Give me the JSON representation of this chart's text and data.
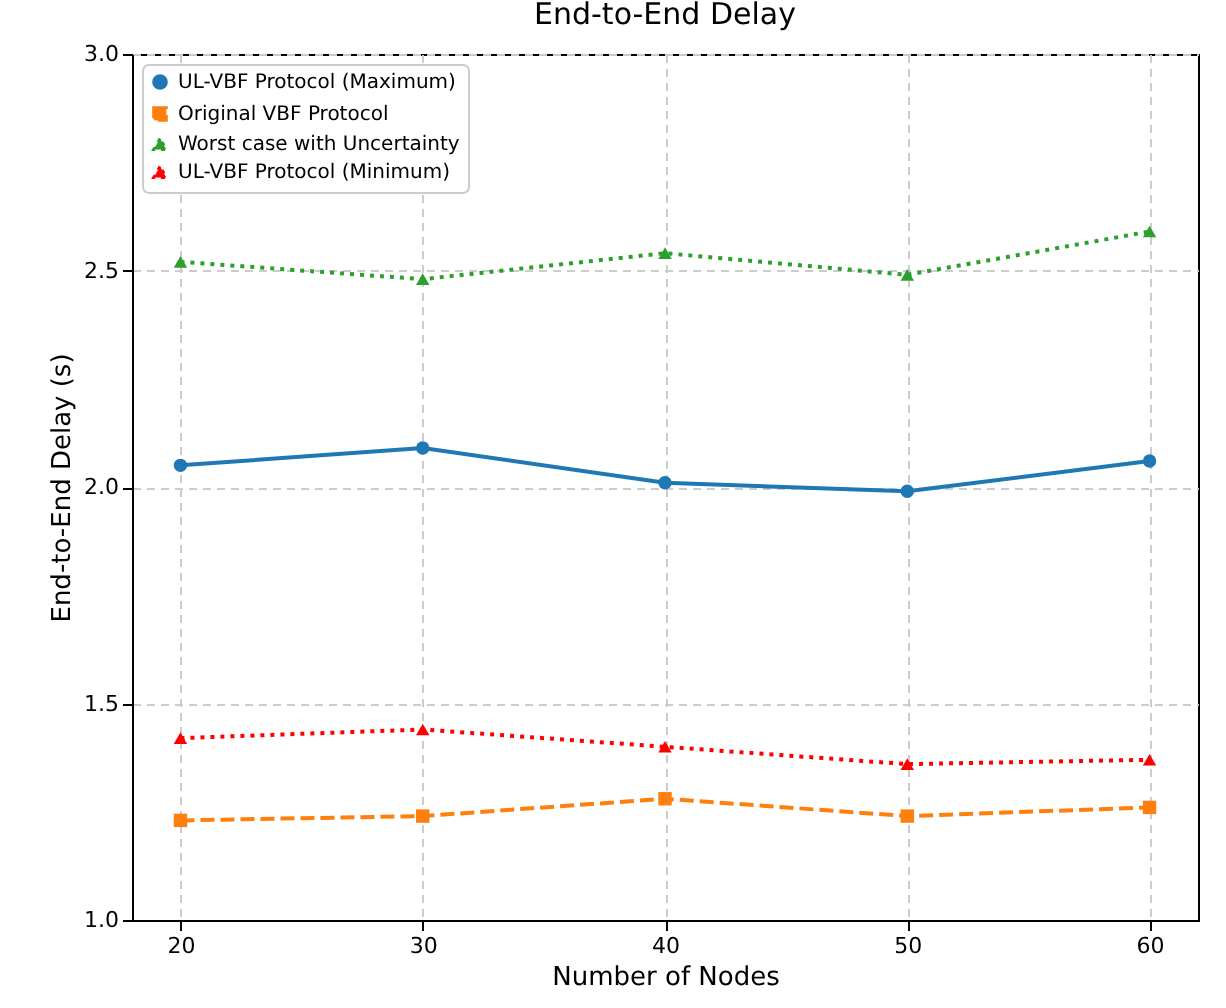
{
  "chart_data": {
    "type": "line",
    "title": "End-to-End Delay",
    "xlabel": "Number of Nodes",
    "ylabel": "End-to-End Delay (s)",
    "x": [
      20,
      30,
      40,
      50,
      60
    ],
    "series": [
      {
        "name": "UL-VBF Protocol (Maximum)",
        "color": "#1f77b4",
        "marker": "circle",
        "line_style": "solid",
        "values": [
          2.05,
          2.09,
          2.01,
          1.99,
          2.06
        ]
      },
      {
        "name": "Original VBF Protocol",
        "color": "#ff7f0e",
        "marker": "square",
        "line_style": "dashed",
        "values": [
          1.23,
          1.24,
          1.28,
          1.24,
          1.26
        ]
      },
      {
        "name": "Worst case with Uncertainty",
        "color": "#2ca02c",
        "marker": "triangle",
        "line_style": "dotted",
        "values": [
          2.52,
          2.48,
          2.54,
          2.49,
          2.59
        ]
      },
      {
        "name": "UL-VBF Protocol (Minimum)",
        "color": "#ff0000",
        "marker": "triangle",
        "line_style": "dotted",
        "values": [
          1.42,
          1.44,
          1.4,
          1.36,
          1.37
        ]
      }
    ],
    "xlim": [
      18,
      62
    ],
    "xticks": [
      20,
      30,
      40,
      50,
      60
    ],
    "ylim": [
      1.0,
      3.0
    ],
    "yticks": [
      {
        "value": 1.0,
        "label": "1.0"
      },
      {
        "value": 1.5,
        "label": "1.5"
      },
      {
        "value": 2.0,
        "label": "2.0"
      },
      {
        "value": 2.5,
        "label": "2.5"
      },
      {
        "value": 3.0,
        "label": "3.0"
      }
    ],
    "grid": true,
    "legend": "top left"
  }
}
